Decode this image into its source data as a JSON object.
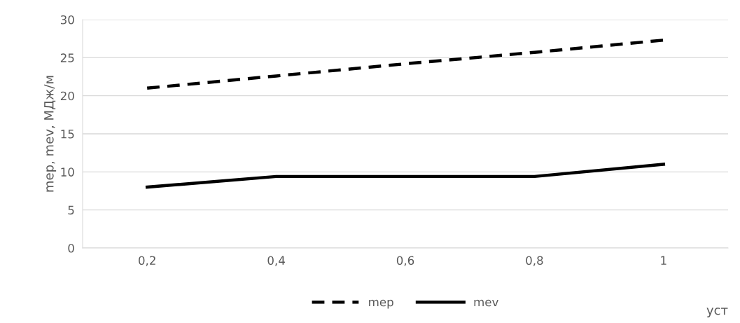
{
  "chart_data": {
    "type": "line",
    "categories": [
      "0,2",
      "0,4",
      "0,6",
      "0,8",
      "1"
    ],
    "ylabel": "mep, mev, МДж/м",
    "xlabel": "уст",
    "ylim": [
      0,
      30
    ],
    "yticks": [
      0,
      5,
      10,
      15,
      20,
      25,
      30
    ],
    "grid": "y",
    "legend": "bottom",
    "marker": "none",
    "series": [
      {
        "name": "mep",
        "color": "#000000",
        "line_style": "dashed",
        "values": [
          21,
          22.6,
          24.2,
          25.7,
          27.3
        ]
      },
      {
        "name": "mev",
        "color": "#000000",
        "line_style": "solid",
        "values": [
          8,
          9.4,
          9.4,
          9.4,
          11
        ]
      }
    ]
  }
}
